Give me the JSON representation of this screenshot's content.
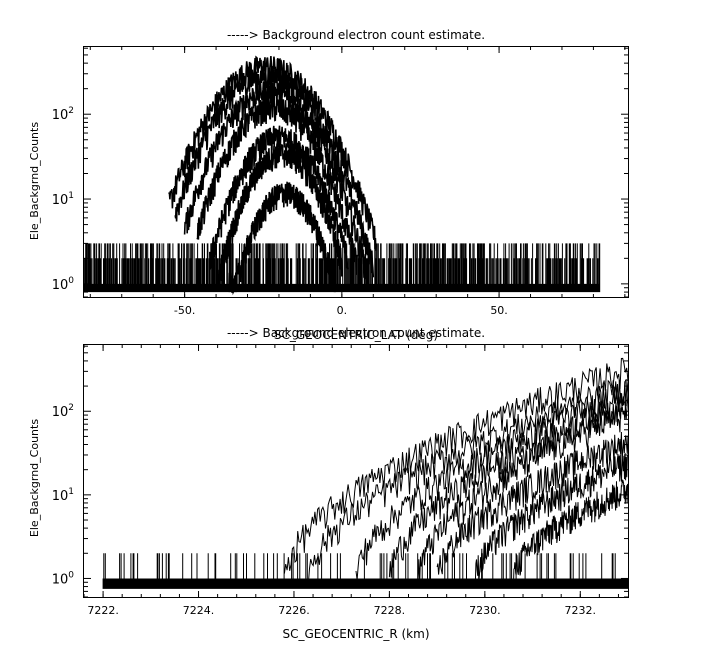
{
  "chart_data": [
    {
      "type": "line",
      "title": "-----> Background electron count estimate.",
      "xlabel": "SC_GEOCENTRIC_LAT (deg)",
      "ylabel": "Ele_Backgrnd_Counts",
      "xlim": [
        -82,
        91
      ],
      "ylim": [
        0.7,
        620
      ],
      "yscale": "log",
      "xticks": [
        -50,
        0,
        50
      ],
      "xtick_labels": [
        "-50.",
        "0.",
        "50."
      ],
      "yticks": [
        1,
        10,
        100
      ],
      "grid": false,
      "noise_floor": {
        "x_range": [
          -82,
          82
        ],
        "low": 0.8,
        "high": [
          1,
          2,
          3
        ]
      },
      "series": [
        {
          "peak": 370,
          "center": -24,
          "width": 16,
          "range": [
            -55,
            11
          ]
        },
        {
          "peak": 280,
          "center": -24,
          "width": 15,
          "range": [
            -53,
            10
          ]
        },
        {
          "peak": 190,
          "center": -23,
          "width": 14,
          "range": [
            -50,
            8
          ]
        },
        {
          "peak": 120,
          "center": -22,
          "width": 13,
          "range": [
            -46,
            5
          ]
        },
        {
          "peak": 55,
          "center": -20,
          "width": 12,
          "range": [
            -42,
            2
          ]
        },
        {
          "peak": 35,
          "center": -19,
          "width": 11,
          "range": [
            -40,
            0
          ]
        },
        {
          "peak": 12,
          "center": -18,
          "width": 10,
          "range": [
            -36,
            -2
          ]
        }
      ]
    },
    {
      "type": "line",
      "title": "-----> Background electron count estimate.",
      "xlabel": "SC_GEOCENTRIC_R (km)",
      "ylabel": "Ele_Backgrnd_Counts",
      "xlim": [
        7221.6,
        7233.0
      ],
      "ylim": [
        0.6,
        620
      ],
      "yscale": "log",
      "xticks": [
        7222,
        7224,
        7226,
        7228,
        7230,
        7232
      ],
      "xtick_labels": [
        "7222.",
        "7224.",
        "7226.",
        "7228.",
        "7230.",
        "7232."
      ],
      "yticks": [
        1,
        10,
        100
      ],
      "grid": false,
      "series": [
        {
          "start": 7225.8,
          "end_value": 330
        },
        {
          "start": 7226.3,
          "end_value": 200
        },
        {
          "start": 7227.3,
          "end_value": 170
        },
        {
          "start": 7228.0,
          "end_value": 130
        },
        {
          "start": 7228.6,
          "end_value": 100
        },
        {
          "start": 7229.0,
          "end_value": 45
        },
        {
          "start": 7229.8,
          "end_value": 25
        },
        {
          "start": 7230.6,
          "end_value": 12
        }
      ]
    }
  ]
}
